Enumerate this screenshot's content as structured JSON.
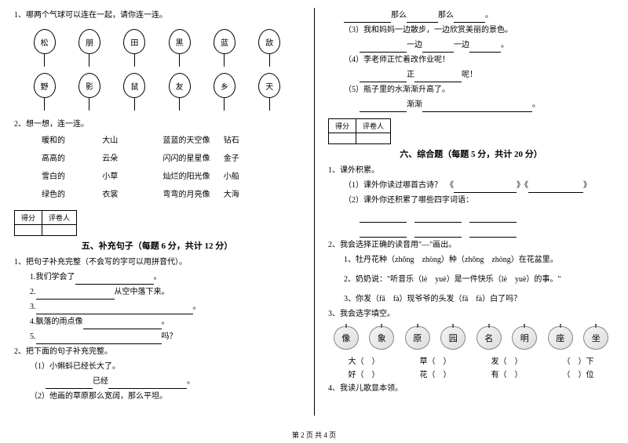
{
  "left": {
    "q1_title": "1、哪两个气球可以连在一起，请你连一连。",
    "balloons_row1": [
      "松",
      "朋",
      "田",
      "黑",
      "蓝",
      "敌"
    ],
    "balloons_row2": [
      "野",
      "影",
      "鼠",
      "友",
      "乡",
      "天"
    ],
    "q2_title": "2、想一想，连一连。",
    "match": [
      [
        "暖和的",
        "大山",
        "蓝蓝的天空像",
        "钻石"
      ],
      [
        "高高的",
        "云朵",
        "闪闪的星星像",
        "金子"
      ],
      [
        "雪白的",
        "小草",
        "灿烂的阳光像",
        "小船"
      ],
      [
        "绿色的",
        "衣裳",
        "弯弯的月亮像",
        "大海"
      ]
    ],
    "score_labels": [
      "得分",
      "评卷人"
    ],
    "section5": "五、补充句子（每题 6 分，共计 12 分）",
    "q5_1": "1、把句子补充完整（不会写的字可以用拼音代）。",
    "q5_1_1": "1.我们学会了",
    "q5_1_2_suffix": "从空中落下来。",
    "q5_1_4": "4.飘落的雨点像",
    "q5_1_5_suffix": "吗？",
    "q5_2": "2、把下面的句子补充完整。",
    "q5_2_1": "（1）小蝌蚪已经长大了。",
    "q5_2_1b": "已经",
    "q5_2_2": "（2）他画的草原那么宽阔，那么平坦。"
  },
  "right": {
    "line1_a": "那么",
    "line1_b": "那么",
    "q3": "（3）我和妈妈一边散步，一边欣赏美丽的景色。",
    "q3_a": "一边",
    "q3_b": "一边",
    "q4": "（4）李老师正忙着改作业呢！",
    "q4_a": "正",
    "q4_b": "呢！",
    "q5": "（5）瓶子里的水渐渐升高了。",
    "q5_a": "渐渐",
    "score_labels": [
      "得分",
      "评卷人"
    ],
    "section6": "六、综合题（每题 5 分，共计 20 分）",
    "q6_1": "1、课外积累。",
    "q6_1_1": "（1）课外你读过哪首古诗？　《",
    "q6_1_1b": "》《",
    "q6_1_1c": "》",
    "q6_1_2": "（2）课外你还积累了哪些四字词语：",
    "q6_2": "2、我会选择正确的读音用\"—\"画出。",
    "q6_2_1": "1、牡丹花种（zhǒng　zhòng）种（zhǒng　zhòng）在花盆里。",
    "q6_2_2": "2、奶奶说：\"听音乐（lè　yuè）是一件快乐（lè　yuè）的事。\"",
    "q6_2_3": "3、你发（fā　fà）现爷爷的头发（fā　fà）白了吗？",
    "q6_3": "3、我会选字填空。",
    "apples": [
      "像",
      "象",
      "原",
      "园",
      "名",
      "明",
      "座",
      "坐"
    ],
    "char_row1": [
      "大（　）",
      "草（　）",
      "发（　）",
      "（　）下"
    ],
    "char_row2": [
      "好（　）",
      "花（　）",
      "有（　）",
      "（　）位"
    ],
    "q6_4": "4、我读儿歌显本领。"
  },
  "footer": "第 2 页 共 4 页"
}
